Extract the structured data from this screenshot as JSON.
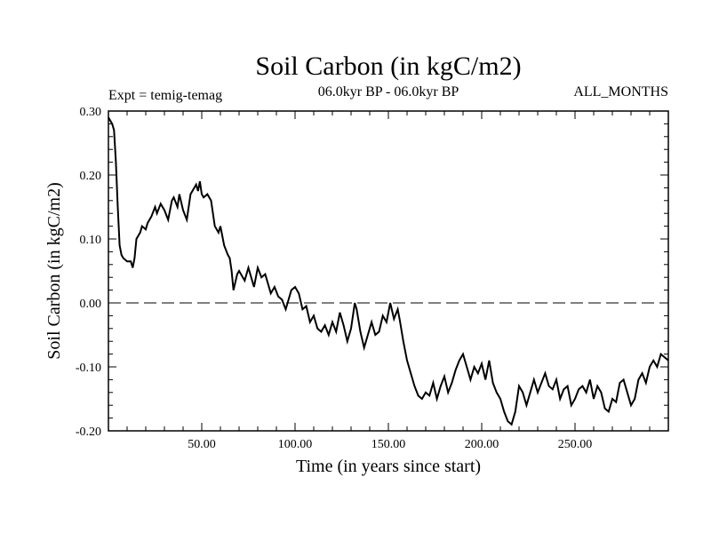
{
  "chart_data": {
    "type": "line",
    "title": "Soil Carbon (in kgC/m2)",
    "subtitle": "06.0kyr BP - 06.0kyr BP",
    "expt_label": "Expt = temig-temag",
    "season_label": "ALL_MONTHS",
    "xlabel": "Time (in years since start)",
    "ylabel": "Soil Carbon (in kgC/m2)",
    "xlim": [
      0,
      300
    ],
    "ylim": [
      -0.2,
      0.3
    ],
    "xticks": [
      50,
      100,
      150,
      200,
      250
    ],
    "xtick_labels": [
      "50.00",
      "100.00",
      "150.00",
      "200.00",
      "250.00"
    ],
    "yticks": [
      0.3,
      0.2,
      0.1,
      0.0,
      -0.1,
      -0.2
    ],
    "ytick_labels": [
      "0.30",
      "0.20",
      "0.10",
      "0.00",
      "-0.10",
      "-0.20"
    ],
    "reference_line": {
      "y": 0.0,
      "style": "dashed"
    },
    "series": [
      {
        "name": "Soil Carbon",
        "x": [
          0,
          2,
          3,
          4,
          5,
          6,
          7,
          8,
          10,
          12,
          13,
          14,
          15,
          17,
          18,
          20,
          21,
          23,
          25,
          26,
          28,
          30,
          32,
          34,
          35,
          37,
          38,
          40,
          42,
          44,
          45,
          47,
          48,
          49,
          50,
          51,
          53,
          55,
          57,
          59,
          60,
          62,
          64,
          65,
          66,
          67,
          69,
          70,
          72,
          73,
          75,
          77,
          78,
          80,
          82,
          84,
          85,
          87,
          89,
          91,
          93,
          95,
          96,
          98,
          100,
          102,
          104,
          106,
          108,
          110,
          112,
          114,
          116,
          118,
          120,
          122,
          124,
          126,
          128,
          130,
          132,
          133,
          135,
          137,
          139,
          141,
          143,
          145,
          147,
          149,
          151,
          153,
          155,
          156,
          158,
          160,
          162,
          164,
          166,
          168,
          170,
          172,
          174,
          176,
          178,
          180,
          182,
          184,
          186,
          188,
          190,
          192,
          194,
          196,
          198,
          200,
          202,
          204,
          206,
          208,
          210,
          212,
          214,
          216,
          218,
          220,
          222,
          224,
          226,
          228,
          230,
          232,
          234,
          236,
          238,
          240,
          242,
          244,
          246,
          248,
          250,
          252,
          254,
          256,
          258,
          260,
          262,
          264,
          266,
          268,
          270,
          272,
          274,
          276,
          278,
          280,
          282,
          284,
          286,
          288,
          290,
          292,
          294,
          296,
          298,
          300
        ],
        "y": [
          0.29,
          0.28,
          0.27,
          0.22,
          0.15,
          0.09,
          0.075,
          0.07,
          0.065,
          0.065,
          0.055,
          0.07,
          0.1,
          0.11,
          0.12,
          0.115,
          0.125,
          0.135,
          0.15,
          0.14,
          0.155,
          0.145,
          0.13,
          0.16,
          0.165,
          0.15,
          0.17,
          0.145,
          0.13,
          0.17,
          0.175,
          0.185,
          0.175,
          0.19,
          0.17,
          0.165,
          0.17,
          0.16,
          0.12,
          0.11,
          0.12,
          0.09,
          0.075,
          0.07,
          0.05,
          0.02,
          0.045,
          0.05,
          0.04,
          0.035,
          0.055,
          0.035,
          0.025,
          0.055,
          0.04,
          0.045,
          0.035,
          0.015,
          0.025,
          0.01,
          0.005,
          -0.01,
          0.0,
          0.02,
          0.025,
          0.015,
          -0.01,
          -0.005,
          -0.03,
          -0.02,
          -0.04,
          -0.045,
          -0.035,
          -0.05,
          -0.03,
          -0.045,
          -0.015,
          -0.035,
          -0.06,
          -0.04,
          0.0,
          -0.01,
          -0.045,
          -0.07,
          -0.05,
          -0.03,
          -0.05,
          -0.045,
          -0.02,
          -0.03,
          0.0,
          -0.025,
          -0.01,
          -0.025,
          -0.06,
          -0.09,
          -0.11,
          -0.13,
          -0.145,
          -0.15,
          -0.14,
          -0.145,
          -0.125,
          -0.15,
          -0.13,
          -0.115,
          -0.14,
          -0.125,
          -0.105,
          -0.09,
          -0.08,
          -0.1,
          -0.12,
          -0.1,
          -0.11,
          -0.095,
          -0.12,
          -0.09,
          -0.125,
          -0.14,
          -0.15,
          -0.17,
          -0.185,
          -0.19,
          -0.17,
          -0.13,
          -0.14,
          -0.16,
          -0.14,
          -0.12,
          -0.14,
          -0.125,
          -0.11,
          -0.13,
          -0.135,
          -0.12,
          -0.15,
          -0.135,
          -0.13,
          -0.16,
          -0.15,
          -0.135,
          -0.13,
          -0.14,
          -0.12,
          -0.15,
          -0.13,
          -0.14,
          -0.165,
          -0.17,
          -0.15,
          -0.155,
          -0.125,
          -0.12,
          -0.14,
          -0.16,
          -0.15,
          -0.12,
          -0.11,
          -0.125,
          -0.1,
          -0.09,
          -0.1,
          -0.08,
          -0.085,
          -0.09
        ]
      }
    ]
  },
  "colors": {
    "line": "#000000",
    "background": "#ffffff"
  }
}
